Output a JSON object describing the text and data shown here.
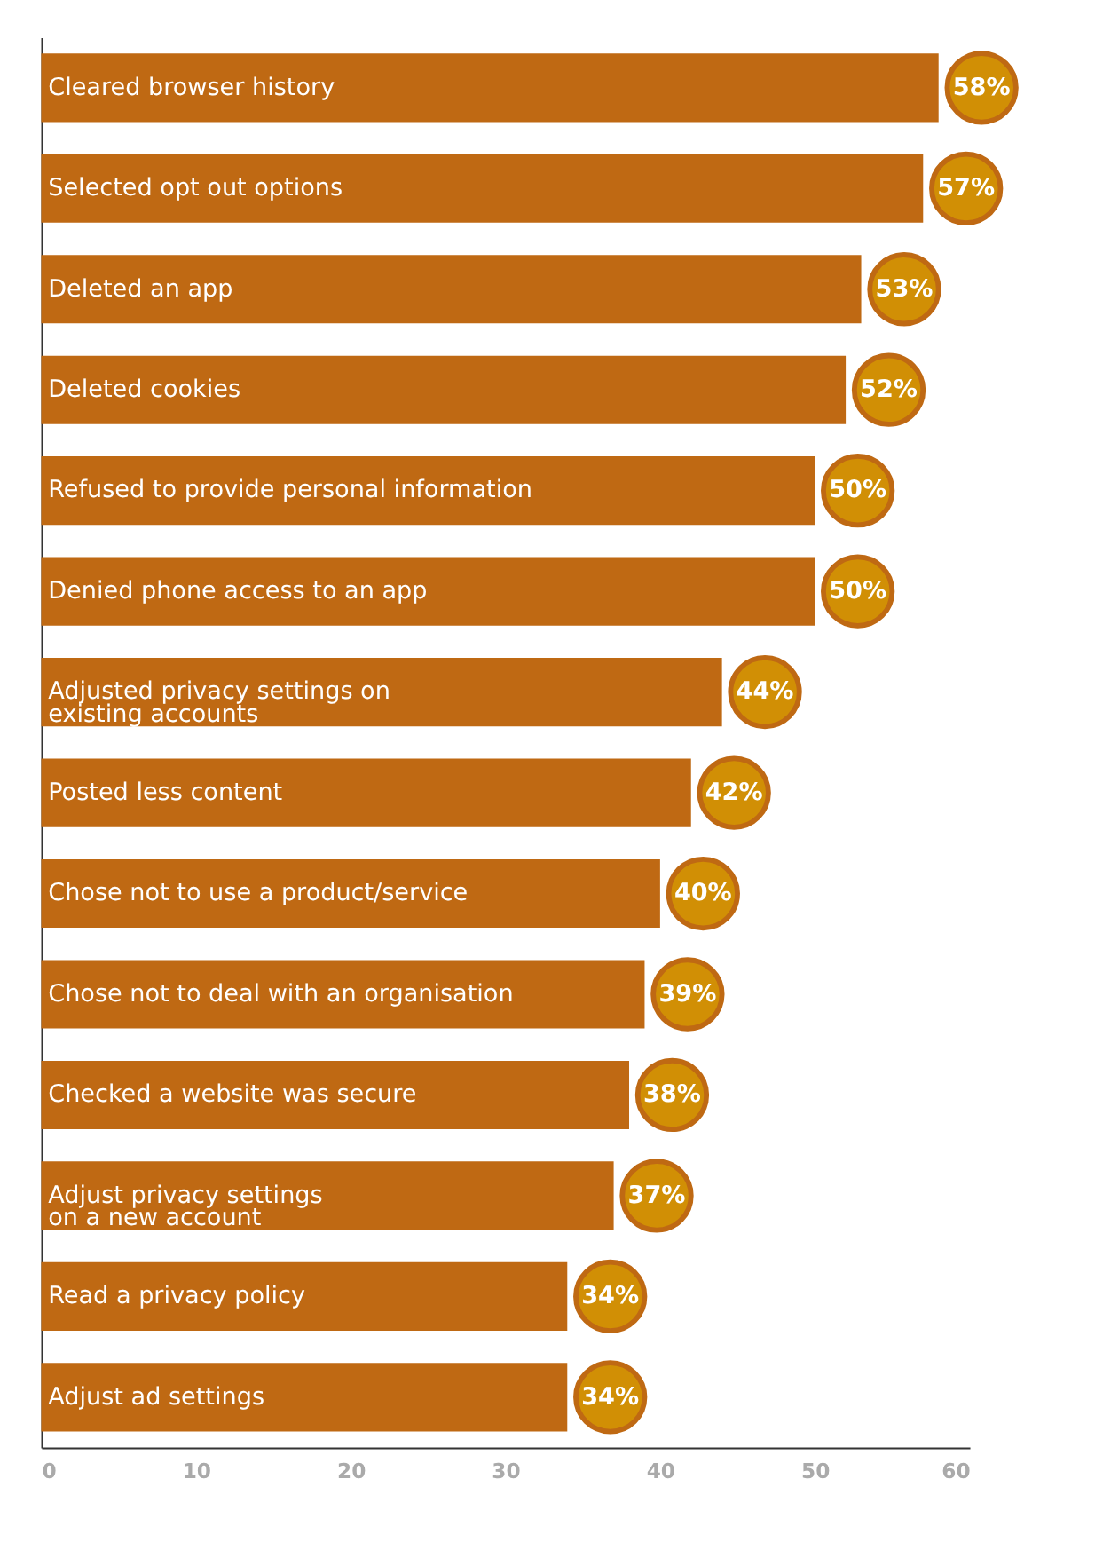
{
  "chart_data": {
    "type": "bar",
    "orientation": "horizontal",
    "categories": [
      "Cleared browser history",
      "Selected opt out options",
      "Deleted an app",
      "Deleted cookies",
      "Refused to provide personal information",
      "Denied phone access to an app",
      "Adjusted privacy settings on\nexisting accounts",
      "Posted less content",
      "Chose not to use a product/service",
      "Chose not to deal with an organisation",
      "Checked a website was secure",
      "Adjust privacy settings\non a new account",
      "Read a privacy policy",
      "Adjust ad settings"
    ],
    "values": [
      58,
      57,
      53,
      52,
      50,
      50,
      44,
      42,
      40,
      39,
      38,
      37,
      34,
      34
    ],
    "value_labels": [
      "58%",
      "57%",
      "53%",
      "52%",
      "50%",
      "50%",
      "44%",
      "42%",
      "40%",
      "39%",
      "38%",
      "37%",
      "34%",
      "34%"
    ],
    "color": "#bf6913",
    "xlim": [
      0,
      60
    ],
    "xticks": [
      0,
      10,
      20,
      30,
      40,
      50,
      60
    ],
    "tick_labels": "x",
    "grid": false
  }
}
